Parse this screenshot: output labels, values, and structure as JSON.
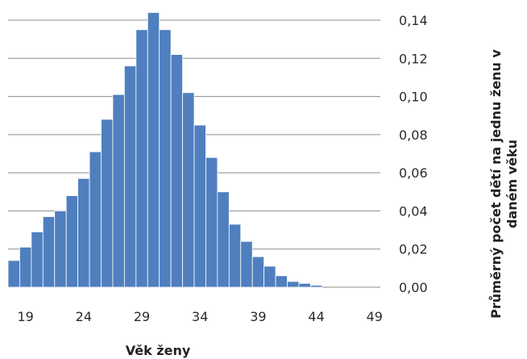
{
  "chart_data": {
    "type": "bar",
    "title": "",
    "xlabel": "Věk ženy",
    "ylabel": "Průměrný počet dětí na jednu ženu v daném věku",
    "ylabel_lines": [
      "Průměrný počet dětí na jednu ženu v",
      "daném věku"
    ],
    "x": [
      18,
      19,
      20,
      21,
      22,
      23,
      24,
      25,
      26,
      27,
      28,
      29,
      30,
      31,
      32,
      33,
      34,
      35,
      36,
      37,
      38,
      39,
      40,
      41,
      42,
      43,
      44,
      45,
      46,
      47,
      48,
      49
    ],
    "values": [
      0.014,
      0.021,
      0.029,
      0.037,
      0.04,
      0.048,
      0.057,
      0.071,
      0.088,
      0.101,
      0.116,
      0.135,
      0.144,
      0.135,
      0.122,
      0.102,
      0.085,
      0.068,
      0.05,
      0.033,
      0.024,
      0.016,
      0.011,
      0.006,
      0.003,
      0.002,
      0.001,
      0,
      0,
      0,
      0,
      0
    ],
    "xticks": [
      "19",
      "24",
      "29",
      "34",
      "39",
      "44",
      "49"
    ],
    "xtick_values": [
      19,
      24,
      29,
      34,
      39,
      44,
      49
    ],
    "yticks": [
      "0,00",
      "0,02",
      "0,04",
      "0,06",
      "0,08",
      "0,10",
      "0,12",
      "0,14"
    ],
    "ytick_values": [
      0,
      0.02,
      0.04,
      0.06,
      0.08,
      0.1,
      0.12,
      0.14
    ],
    "ylim": [
      0,
      0.14
    ],
    "y_axis_side": "right",
    "grid": true,
    "bar_color": "#4f7fbf",
    "bar_edge_color": "#ffffff",
    "grid_color": "#8c8c8c"
  }
}
